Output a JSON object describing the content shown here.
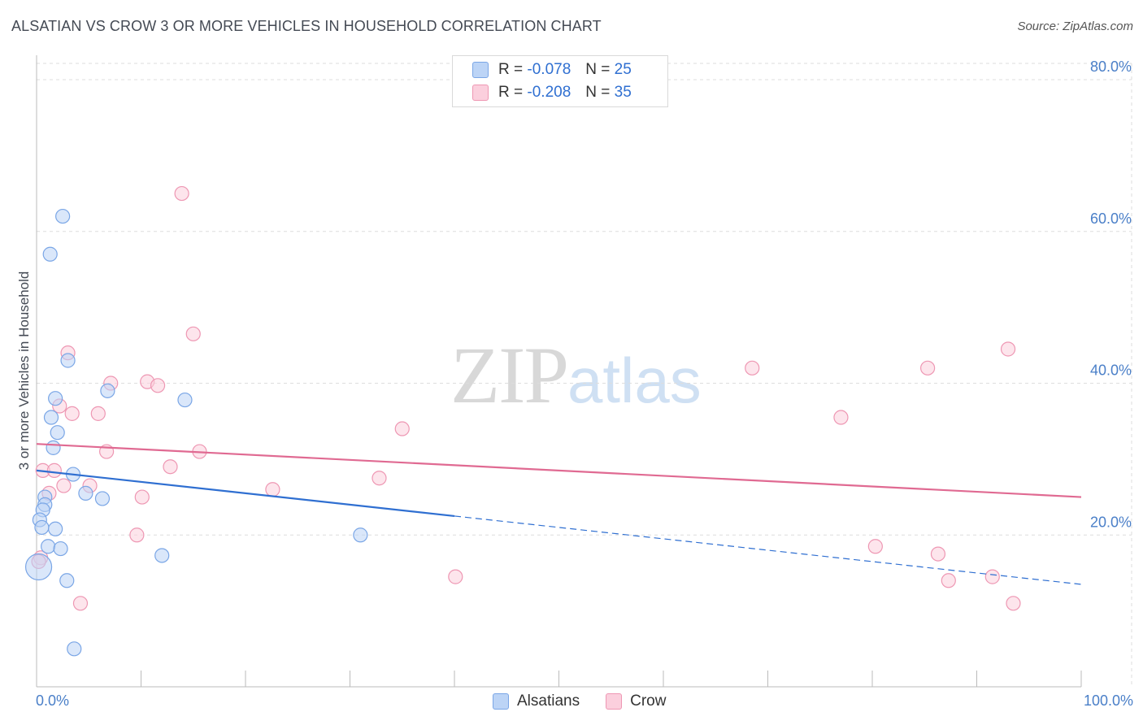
{
  "header": {
    "title": "ALSATIAN VS CROW 3 OR MORE VEHICLES IN HOUSEHOLD CORRELATION CHART",
    "source": "Source: ZipAtlas.com"
  },
  "watermark": {
    "zip": "ZIP",
    "atlas": "atlas"
  },
  "legend": {
    "alsatians": {
      "r_label": "R =",
      "r_value": "-0.078",
      "n_label": "N =",
      "n_value": "25"
    },
    "crow": {
      "r_label": "R =",
      "r_value": "-0.208",
      "n_label": "N =",
      "n_value": "35"
    }
  },
  "colors": {
    "alsatians_fill": "#bcd4f6",
    "alsatians_stroke": "#7aa6e6",
    "alsatians_line": "#2f6fd1",
    "crow_fill": "#fbcfdd",
    "crow_stroke": "#ee97b3",
    "crow_line": "#e06a92",
    "grid": "#dddddd",
    "axis": "#bbbbbb",
    "tick_label": "#4a7fc8"
  },
  "chart_data": {
    "type": "scatter",
    "title": "ALSATIAN VS CROW 3 OR MORE VEHICLES IN HOUSEHOLD CORRELATION CHART",
    "xlabel": "",
    "ylabel": "3 or more Vehicles in Household",
    "xlim": [
      0,
      100
    ],
    "ylim": [
      0,
      83
    ],
    "x_tick_labels": {
      "min": "0.0%",
      "max": "100.0%"
    },
    "y_ticks": [
      20,
      40,
      60,
      80
    ],
    "y_tick_labels": [
      "20.0%",
      "40.0%",
      "60.0%",
      "80.0%"
    ],
    "legend_position": "top-center",
    "series": [
      {
        "name": "Alsatians",
        "points": [
          {
            "x": 2.5,
            "y": 62.0
          },
          {
            "x": 1.3,
            "y": 57.0
          },
          {
            "x": 3.0,
            "y": 43.0
          },
          {
            "x": 1.8,
            "y": 38.0
          },
          {
            "x": 6.8,
            "y": 39.0
          },
          {
            "x": 14.2,
            "y": 37.8
          },
          {
            "x": 1.4,
            "y": 35.5
          },
          {
            "x": 2.0,
            "y": 33.5
          },
          {
            "x": 1.6,
            "y": 31.5
          },
          {
            "x": 3.5,
            "y": 28.0
          },
          {
            "x": 4.7,
            "y": 25.5
          },
          {
            "x": 6.3,
            "y": 24.8
          },
          {
            "x": 0.8,
            "y": 25.0
          },
          {
            "x": 0.8,
            "y": 24.0
          },
          {
            "x": 0.6,
            "y": 23.3
          },
          {
            "x": 0.3,
            "y": 22.0
          },
          {
            "x": 0.5,
            "y": 21.0
          },
          {
            "x": 1.8,
            "y": 20.8
          },
          {
            "x": 31.0,
            "y": 20.0
          },
          {
            "x": 1.1,
            "y": 18.5
          },
          {
            "x": 2.3,
            "y": 18.2
          },
          {
            "x": 12.0,
            "y": 17.3
          },
          {
            "x": 0.2,
            "y": 15.8
          },
          {
            "x": 2.9,
            "y": 14.0
          },
          {
            "x": 3.6,
            "y": 5.0
          }
        ],
        "trend": {
          "x1": 0,
          "y1": 28.5,
          "x2": 40,
          "y2": 22.5,
          "dashed_to_x": 100,
          "dashed_to_y": 13.5
        }
      },
      {
        "name": "Crow",
        "points": [
          {
            "x": 13.9,
            "y": 65.0
          },
          {
            "x": 15.0,
            "y": 46.5
          },
          {
            "x": 3.0,
            "y": 44.0
          },
          {
            "x": 93.0,
            "y": 44.5
          },
          {
            "x": 85.3,
            "y": 42.0
          },
          {
            "x": 68.5,
            "y": 42.0
          },
          {
            "x": 7.1,
            "y": 40.0
          },
          {
            "x": 10.6,
            "y": 40.2
          },
          {
            "x": 11.6,
            "y": 39.7
          },
          {
            "x": 2.2,
            "y": 37.0
          },
          {
            "x": 3.4,
            "y": 36.0
          },
          {
            "x": 5.9,
            "y": 36.0
          },
          {
            "x": 77.0,
            "y": 35.5
          },
          {
            "x": 35.0,
            "y": 34.0
          },
          {
            "x": 6.7,
            "y": 31.0
          },
          {
            "x": 15.6,
            "y": 31.0
          },
          {
            "x": 12.8,
            "y": 29.0
          },
          {
            "x": 0.6,
            "y": 28.5
          },
          {
            "x": 1.7,
            "y": 28.5
          },
          {
            "x": 32.8,
            "y": 27.5
          },
          {
            "x": 2.6,
            "y": 26.5
          },
          {
            "x": 5.1,
            "y": 26.5
          },
          {
            "x": 22.6,
            "y": 26.0
          },
          {
            "x": 1.2,
            "y": 25.5
          },
          {
            "x": 10.1,
            "y": 25.0
          },
          {
            "x": 9.6,
            "y": 20.0
          },
          {
            "x": 80.3,
            "y": 18.5
          },
          {
            "x": 0.4,
            "y": 17.0
          },
          {
            "x": 86.3,
            "y": 17.5
          },
          {
            "x": 40.1,
            "y": 14.5
          },
          {
            "x": 87.3,
            "y": 14.0
          },
          {
            "x": 91.5,
            "y": 14.5
          },
          {
            "x": 0.2,
            "y": 16.5
          },
          {
            "x": 4.2,
            "y": 11.0
          },
          {
            "x": 93.5,
            "y": 11.0
          }
        ],
        "trend": {
          "x1": 0,
          "y1": 32.0,
          "x2": 100,
          "y2": 25.0
        }
      }
    ]
  }
}
